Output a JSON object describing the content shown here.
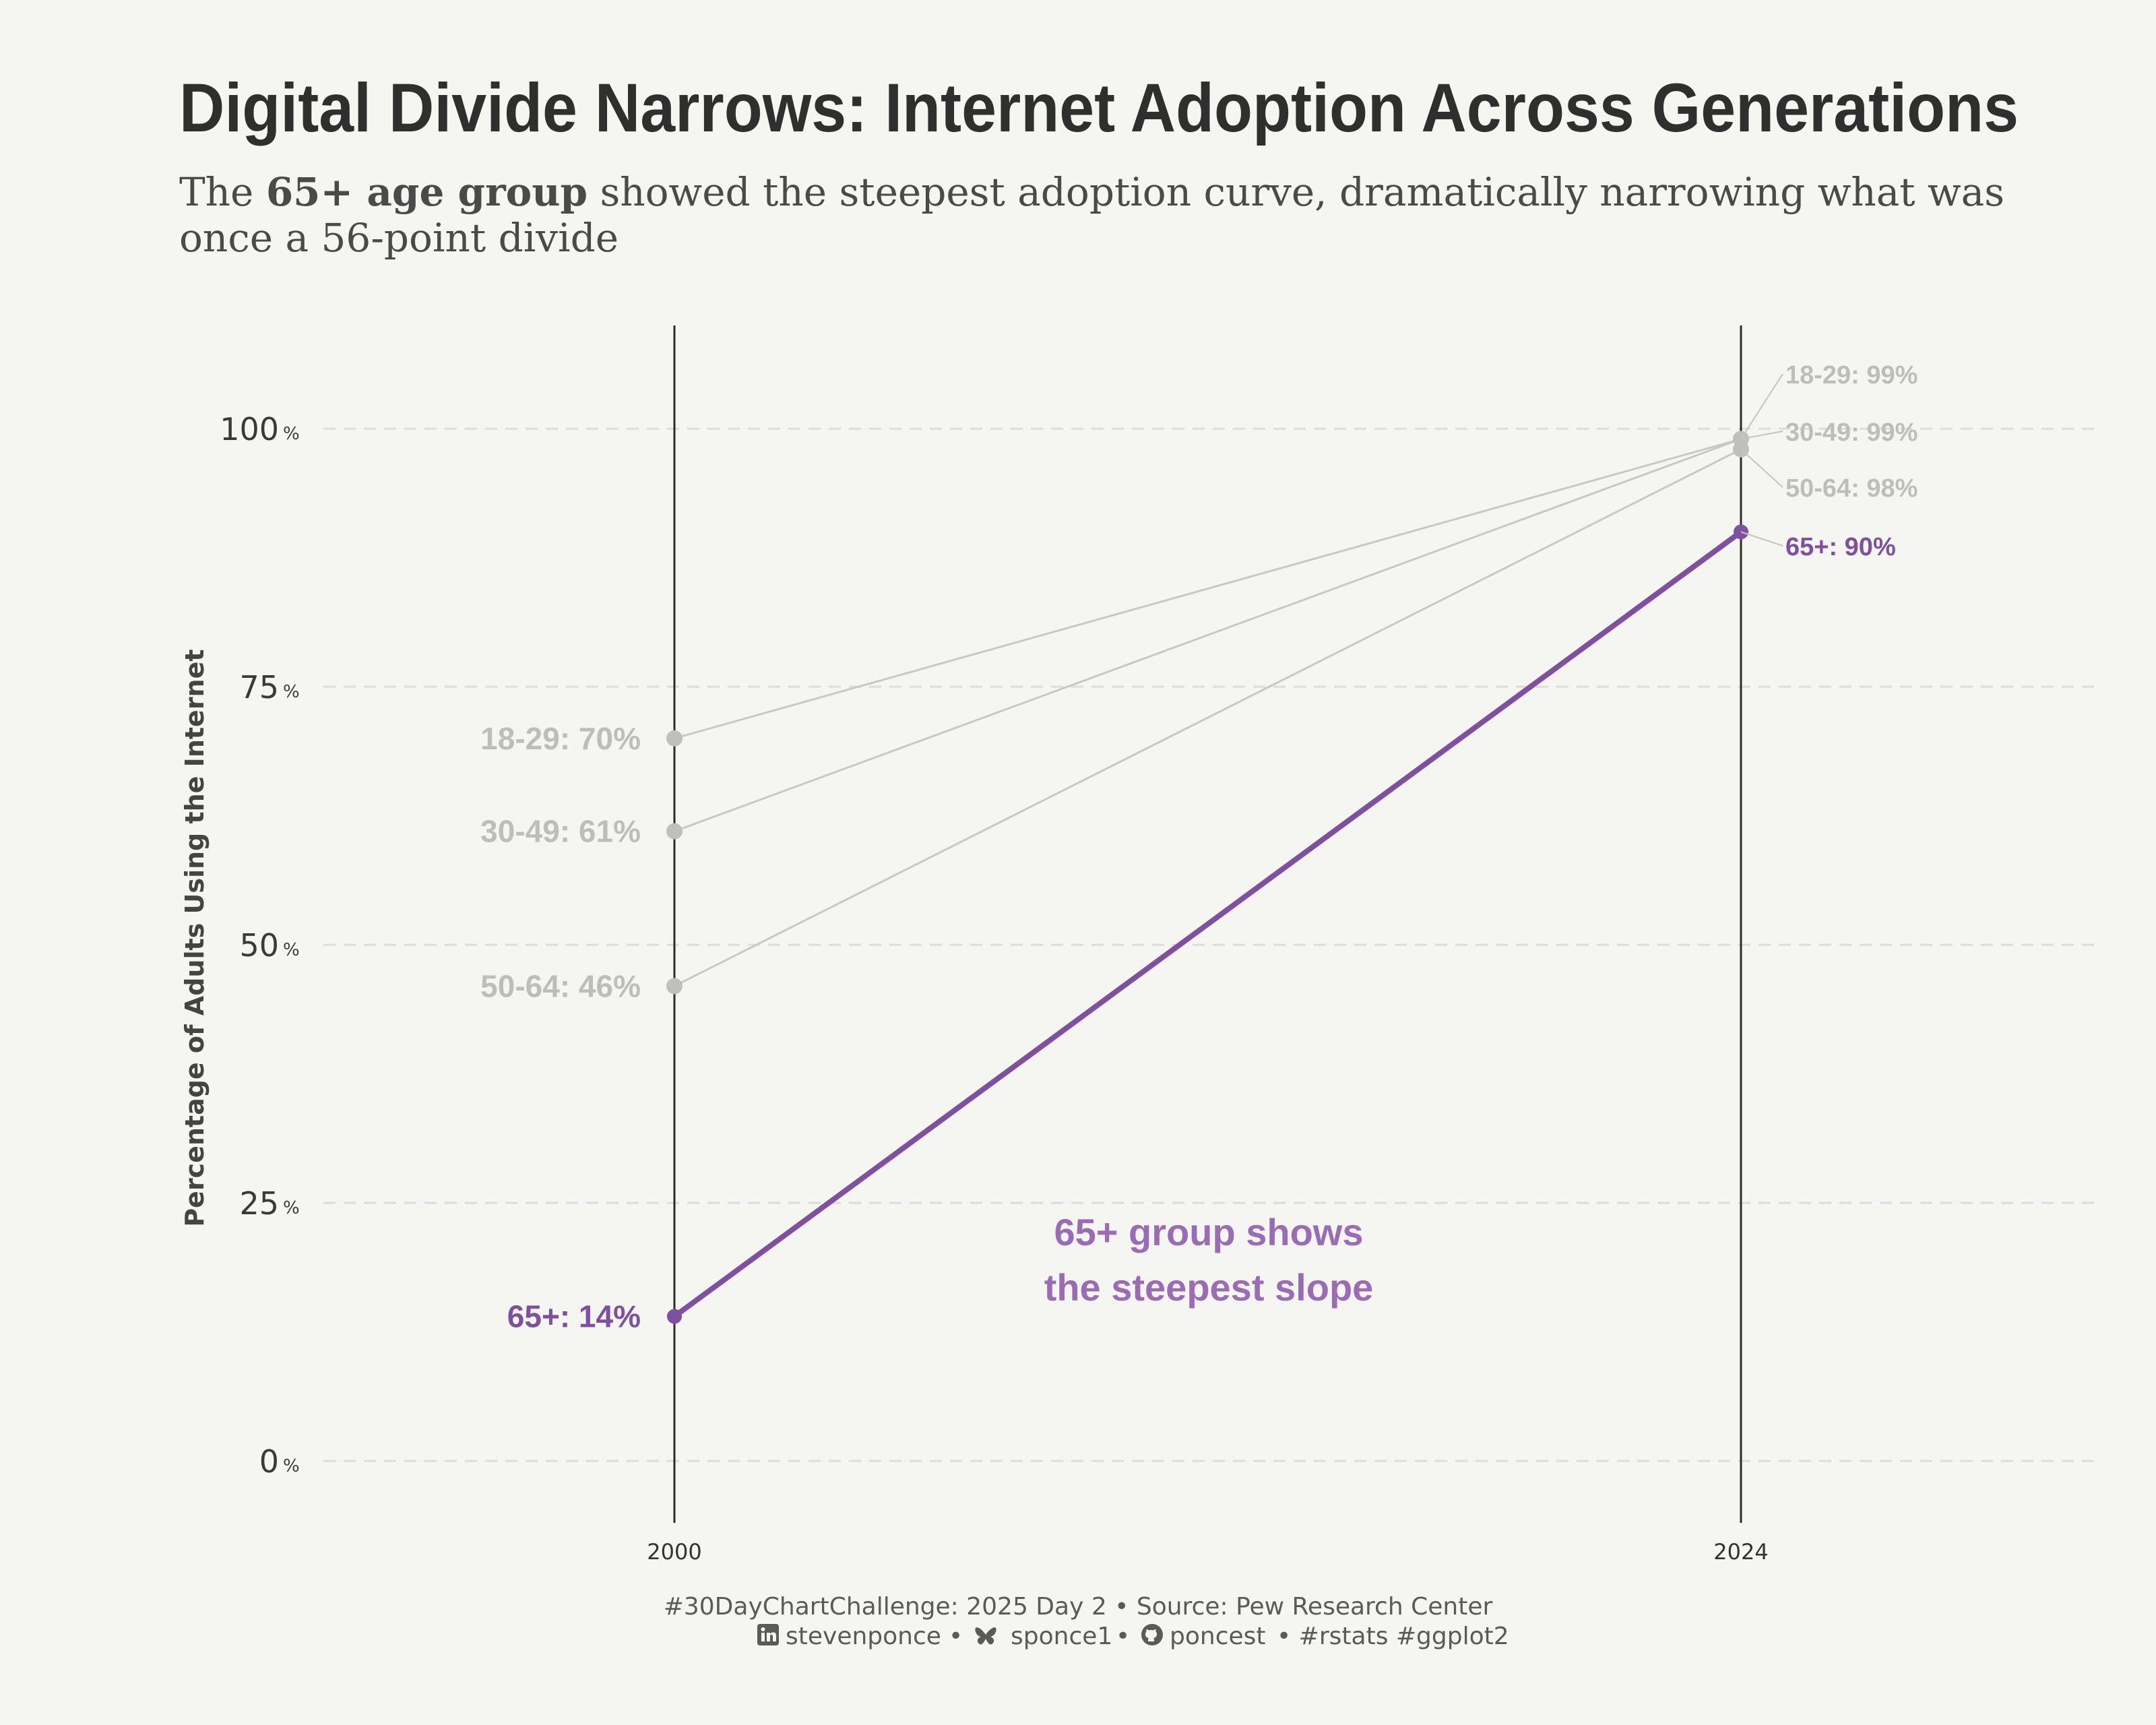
{
  "title": "Digital Divide Narrows: Internet Adoption Across Generations",
  "subtitle": {
    "prefix": "The ",
    "bold": "65+ age group",
    "rest_line1": " showed the steepest adoption curve, dramatically narrowing what was",
    "line2": "once a 56-point divide"
  },
  "colors": {
    "background": "#f5f5f2",
    "highlight": "#7f4fa0",
    "muted_line": "#c8c8c8",
    "muted_point": "#bfbfbf",
    "muted_label": "#bdbdbd",
    "annotation": "#9a6cb5"
  },
  "chart_data": {
    "type": "line",
    "subtype": "slope",
    "x": [
      2000,
      2024
    ],
    "x_tick_labels": [
      "2000",
      "2024"
    ],
    "ylabel": "Percentage of Adults Using the Internet",
    "ylim": [
      -6,
      110
    ],
    "y_ticks": [
      0,
      25,
      50,
      75,
      100
    ],
    "y_tick_labels": [
      "0",
      "25",
      "50",
      "75",
      "100"
    ],
    "y_tick_suffix": "%",
    "grid": "horizontal dashed",
    "series": [
      {
        "name": "18-29",
        "values": [
          70,
          99
        ],
        "labels": [
          "18-29: 70%",
          "18-29: 99%"
        ],
        "highlight": false
      },
      {
        "name": "30-49",
        "values": [
          61,
          99
        ],
        "labels": [
          "30-49: 61%",
          "30-49: 99%"
        ],
        "highlight": false
      },
      {
        "name": "50-64",
        "values": [
          46,
          98
        ],
        "labels": [
          "50-64: 46%",
          "50-64: 98%"
        ],
        "highlight": false
      },
      {
        "name": "65+",
        "values": [
          14,
          90
        ],
        "labels": [
          "65+: 14%",
          "65+: 90%"
        ],
        "highlight": true
      }
    ],
    "annotation": {
      "line1": "65+ group shows",
      "line2": "the steepest slope"
    }
  },
  "caption": {
    "line1": "#30DayChartChallenge:  2025 Day 2 • Source: Pew Research Center",
    "linkedin": "stevenponce",
    "sep1": " • ",
    "bluesky": "sponce1",
    "sep2": " • ",
    "github": "poncest",
    "tags": " • #rstats #ggplot2"
  }
}
